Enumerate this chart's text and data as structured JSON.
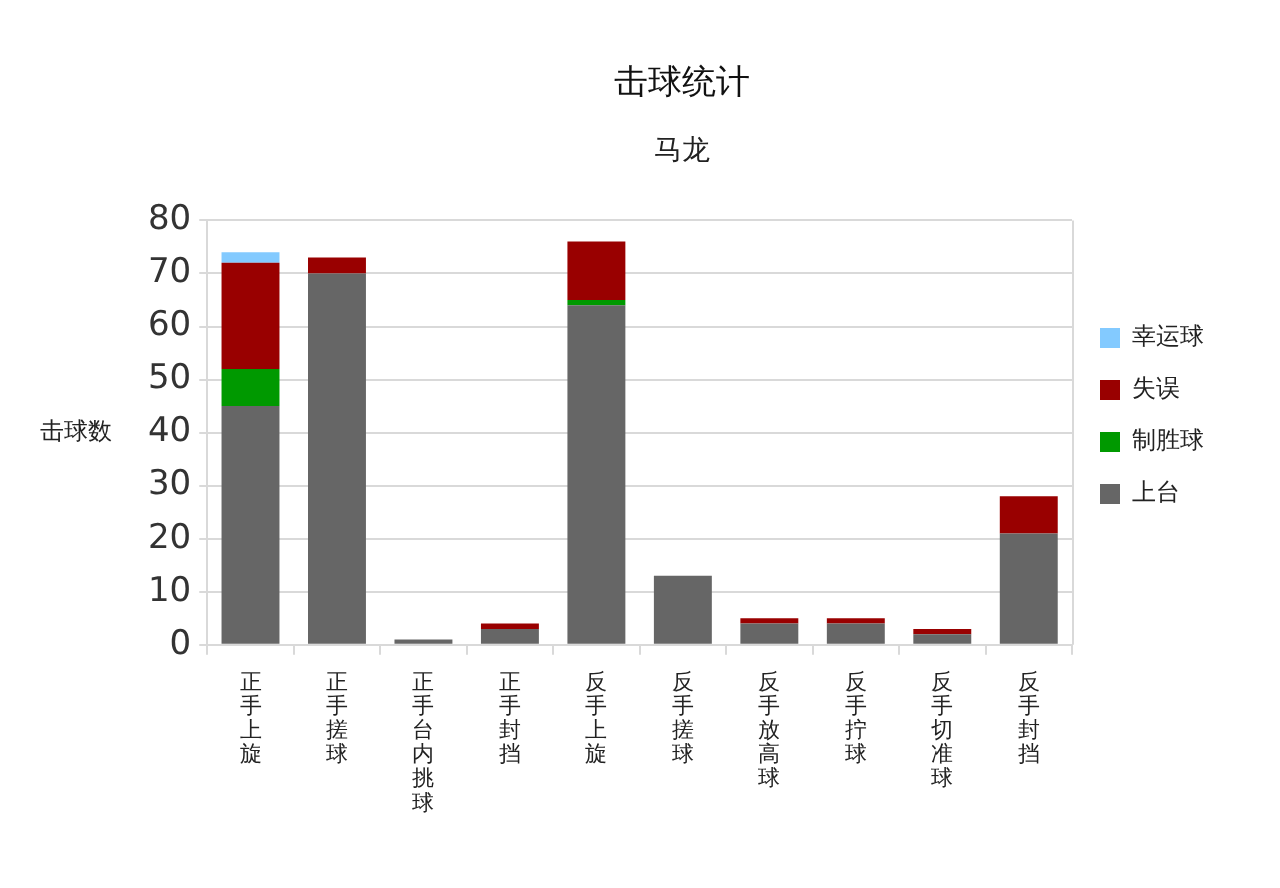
{
  "chart_data": {
    "type": "bar",
    "title": "击球统计",
    "subtitle": "马龙",
    "ylabel": "击球数",
    "categories": [
      "正手上旋",
      "正手搓球",
      "正手台内挑球",
      "正手封挡",
      "反手上旋",
      "反手搓球",
      "反手放高球",
      "反手拧球",
      "反手切准球",
      "反手封挡"
    ],
    "series": [
      {
        "name": "上台",
        "color": "#666666",
        "values": [
          45,
          70,
          1,
          3,
          64,
          13,
          4,
          4,
          2,
          21
        ]
      },
      {
        "name": "制胜球",
        "color": "#009900",
        "values": [
          7,
          0,
          0,
          0,
          1,
          0,
          0,
          0,
          0,
          0
        ]
      },
      {
        "name": "失误",
        "color": "#990000",
        "values": [
          20,
          3,
          0,
          1,
          11,
          0,
          1,
          1,
          1,
          7
        ]
      },
      {
        "name": "幸运球",
        "color": "#83caff",
        "values": [
          2,
          0,
          0,
          0,
          0,
          0,
          0,
          0,
          0,
          0
        ]
      }
    ],
    "stacked": true,
    "ylim": [
      0,
      80
    ],
    "yticks": [
      0,
      10,
      20,
      30,
      40,
      50,
      60,
      70,
      80
    ],
    "grid": "y",
    "legend": "right"
  }
}
